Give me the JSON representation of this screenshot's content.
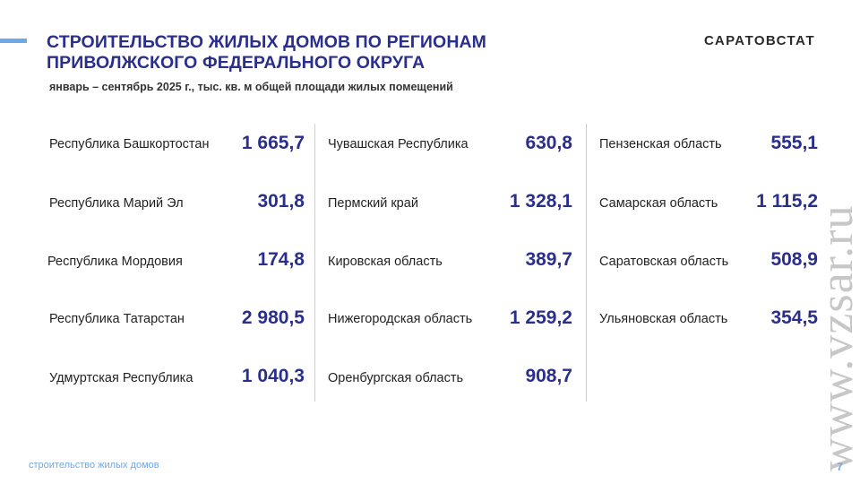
{
  "header": {
    "title_line1": "СТРОИТЕЛЬСТВО ЖИЛЫХ ДОМОВ ПО РЕГИОНАМ",
    "title_line2": "ПРИВОЛЖСКОГО ФЕДЕРАЛЬНОГО ОКРУГА",
    "subtitle": "январь – сентябрь 2025 г., тыс. кв. м общей площади жилых помещений",
    "brand": "САРАТОВСТАТ"
  },
  "columns": [
    {
      "rows": [
        {
          "region": "Республика Башкортостан",
          "value": "1 665,7"
        },
        {
          "region": "Республика Марий Эл",
          "value": "301,8"
        },
        {
          "region": "Республика Мордовия",
          "value": "174,8"
        },
        {
          "region": "Республика Татарстан",
          "value": "2 980,5"
        },
        {
          "region": "Удмуртская Республика",
          "value": "1 040,3"
        }
      ]
    },
    {
      "rows": [
        {
          "region": "Чувашская Республика",
          "value": "630,8"
        },
        {
          "region": "Пермский край",
          "value": "1 328,1"
        },
        {
          "region": "Кировская область",
          "value": "389,7"
        },
        {
          "region": "Нижегородская область",
          "value": "1 259,2"
        },
        {
          "region": "Оренбургская область",
          "value": "908,7"
        }
      ]
    },
    {
      "rows": [
        {
          "region": "Пензенская область",
          "value": "555,1"
        },
        {
          "region": "Самарская область",
          "value": "1 115,2"
        },
        {
          "region": "Саратовская область",
          "value": "508,9"
        },
        {
          "region": "Ульяновская область",
          "value": "354,5"
        }
      ]
    }
  ],
  "footer": {
    "section": "строительство жилых домов",
    "page": "7"
  },
  "watermark": "www.vzsar.ru",
  "colors": {
    "title": "#2b2f8c",
    "value": "#2b2f8c",
    "accent": "#6fa8e8",
    "divider": "#cfcfcf",
    "watermark": "#c7c7c7"
  }
}
